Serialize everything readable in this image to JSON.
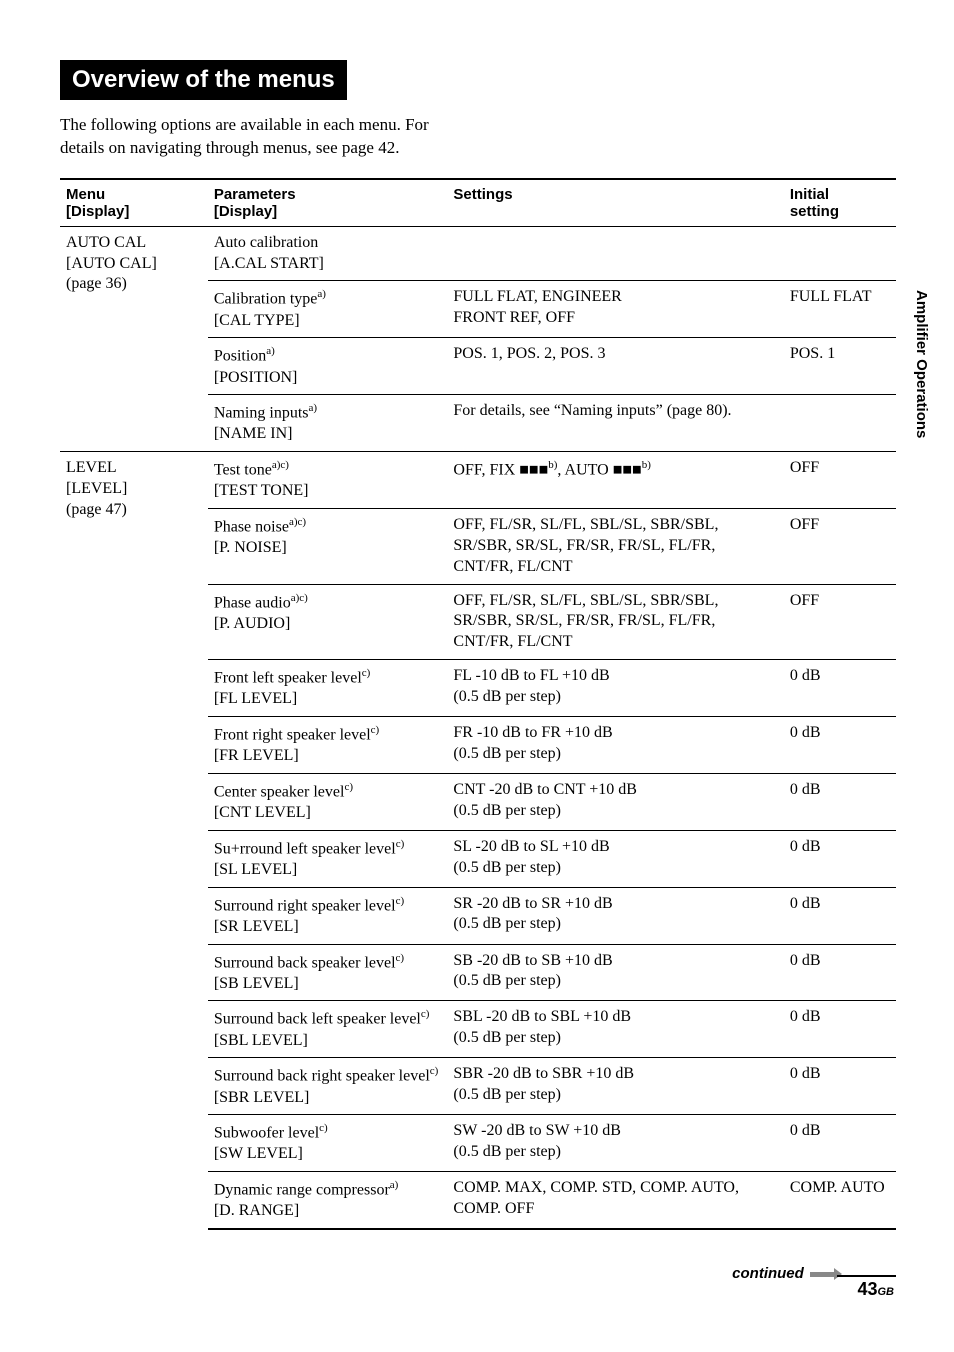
{
  "title": "Overview of the menus",
  "intro": "The following options are available in each menu. For details on navigating through menus, see page 42.",
  "side_label": "Amplifier Operations",
  "continued": "continued",
  "page_number": "43",
  "page_suffix": "GB",
  "headers": {
    "menu": "Menu\n[Display]",
    "param": "Parameters\n[Display]",
    "settings": "Settings",
    "initial": "Initial\nsetting"
  },
  "groups": [
    {
      "menu": "AUTO CAL\n[AUTO CAL]\n(page 36)",
      "rows": [
        {
          "param": "Auto calibration",
          "disp": "[A.CAL START]",
          "sup": "",
          "settings": "",
          "initial": ""
        },
        {
          "param": "Calibration type",
          "disp": "[CAL TYPE]",
          "sup": "a)",
          "settings": "FULL FLAT, ENGINEER\nFRONT REF, OFF",
          "initial": "FULL FLAT"
        },
        {
          "param": "Position",
          "disp": "[POSITION]",
          "sup": "a)",
          "settings": "POS. 1, POS. 2, POS. 3",
          "initial": "POS. 1"
        },
        {
          "param": "Naming inputs",
          "disp": "[NAME IN]",
          "sup": "a)",
          "settings": "For details, see “Naming inputs” (page 80).",
          "initial": ""
        }
      ]
    },
    {
      "menu": "LEVEL\n[LEVEL]\n(page 47)",
      "rows": [
        {
          "param": "Test tone",
          "disp": "[TEST TONE]",
          "sup": "a)c)",
          "settings_html": "OFF, FIX ■■■<sup>b)</sup>, AUTO ■■■<sup>b)</sup>",
          "initial": "OFF"
        },
        {
          "param": "Phase noise",
          "disp": "[P. NOISE]",
          "sup": "a)c)",
          "settings": "OFF, FL/SR, SL/FL, SBL/SL, SBR/SBL, SR/SBR, SR/SL, FR/SR, FR/SL, FL/FR, CNT/FR, FL/CNT",
          "initial": "OFF"
        },
        {
          "param": "Phase audio",
          "disp": "[P. AUDIO]",
          "sup": "a)c)",
          "settings": "OFF, FL/SR, SL/FL, SBL/SL, SBR/SBL, SR/SBR, SR/SL, FR/SR, FR/SL, FL/FR, CNT/FR, FL/CNT",
          "initial": "OFF"
        },
        {
          "param": "Front left speaker level",
          "disp": "[FL LEVEL]",
          "sup": "c)",
          "settings": "FL -10 dB to FL +10 dB\n(0.5 dB per step)",
          "initial": "0 dB"
        },
        {
          "param": "Front right speaker level",
          "disp": "[FR LEVEL]",
          "sup": "c)",
          "settings": "FR -10 dB to FR +10 dB\n(0.5 dB per step)",
          "initial": "0 dB"
        },
        {
          "param": "Center speaker level",
          "disp": "[CNT LEVEL]",
          "sup": "c)",
          "settings": "CNT -20 dB to CNT +10 dB\n(0.5 dB per step)",
          "initial": "0 dB"
        },
        {
          "param": "Su+rround left speaker level",
          "disp": "[SL LEVEL]",
          "sup": "c)",
          "settings": "SL -20 dB to SL +10 dB\n(0.5 dB per step)",
          "initial": "0 dB"
        },
        {
          "param": "Surround right speaker level",
          "disp": "[SR LEVEL]",
          "sup": "c)",
          "settings": "SR -20 dB to SR +10 dB\n(0.5 dB per step)",
          "initial": "0 dB"
        },
        {
          "param": "Surround back speaker level",
          "disp": "[SB LEVEL]",
          "sup": "c)",
          "settings": "SB -20 dB to SB +10 dB\n(0.5 dB per step)",
          "initial": "0 dB"
        },
        {
          "param": "Surround back left speaker level",
          "disp": "[SBL LEVEL]",
          "sup": "c)",
          "settings": "SBL -20 dB to SBL +10 dB\n(0.5 dB per step)",
          "initial": "0 dB"
        },
        {
          "param": "Surround back right speaker level",
          "disp": "[SBR LEVEL]",
          "sup": "c)",
          "settings": "SBR -20 dB to SBR +10 dB\n(0.5 dB per step)",
          "initial": "0 dB"
        },
        {
          "param": "Subwoofer level",
          "disp": "[SW LEVEL]",
          "sup": "c)",
          "settings": "SW -20 dB to SW +10 dB\n(0.5 dB per step)",
          "initial": "0 dB"
        },
        {
          "param": "Dynamic range compressor",
          "disp": "[D. RANGE]",
          "sup": "a)",
          "settings": "COMP. MAX, COMP. STD, COMP. AUTO, COMP. OFF",
          "initial": "COMP. AUTO"
        }
      ]
    }
  ]
}
